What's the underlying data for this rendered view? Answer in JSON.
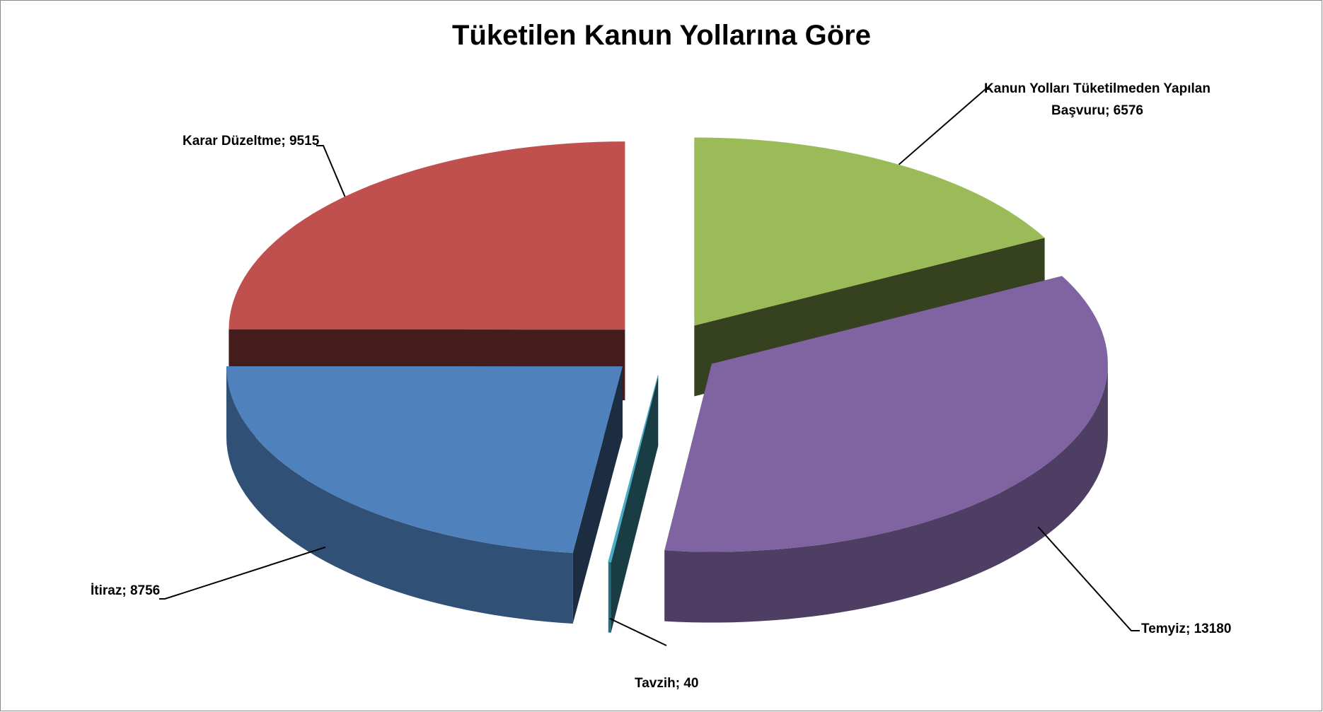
{
  "chart_data": {
    "type": "pie3d",
    "title": "Tüketilen Kanun Yollarına Göre",
    "values": [
      6576,
      13180,
      40,
      8756,
      9515
    ],
    "value_labels": [
      "Kanun Yolları Tüketilmeden Yapılan Başvuru; 6576",
      "Temyiz; 13180",
      "Tavzih; 40",
      "İtiraz; 8756",
      "Karar Düzeltme; 9515"
    ],
    "colors": [
      "#9bbb59",
      "#8064a2",
      "#4bacc6",
      "#4f81bd",
      "#c0504d"
    ]
  }
}
